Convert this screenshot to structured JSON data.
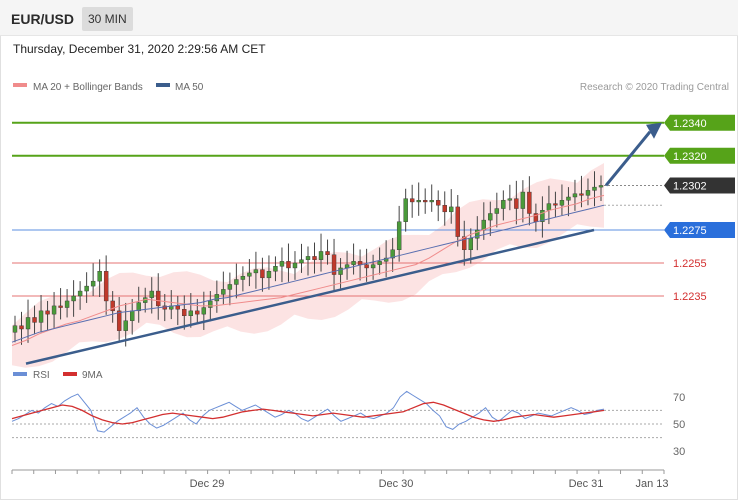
{
  "header": {
    "symbol": "EUR/USD",
    "timeframe": "30 MIN",
    "timestamp": "Thursday, December 31, 2020 2:29:56 AM CET"
  },
  "legend": {
    "ma20": "MA 20 + Bollinger Bands",
    "ma50": "MA 50",
    "credit": "Research © 2020 Trading Central",
    "ma20_color": "#f08c8c",
    "ma50_color": "#3b5d8c"
  },
  "rsi_legend": {
    "rsi": "RSI",
    "ma9": "9MA",
    "rsi_color": "#6b8fd6",
    "ma9_color": "#d32f2f"
  },
  "chart_data": [
    {
      "type": "candlestick",
      "x_ticks": [
        "Dec 29",
        "Dec 30",
        "Dec 31",
        "Jan 13"
      ],
      "ylim": [
        1.2195,
        1.2355
      ],
      "levels": [
        {
          "value": 1.234,
          "label": "1.2340",
          "kind": "resistance",
          "color": "#56a319"
        },
        {
          "value": 1.232,
          "label": "1.2320",
          "kind": "resistance",
          "color": "#56a319"
        },
        {
          "value": 1.2302,
          "label": "1.2302",
          "kind": "current",
          "color": "#333333"
        },
        {
          "value": 1.2275,
          "label": "1.2275",
          "kind": "pivot",
          "color": "#2a6fdb"
        },
        {
          "value": 1.2255,
          "label": "1.2255",
          "kind": "support",
          "color": "#d32f2f"
        },
        {
          "value": 1.2235,
          "label": "1.2235",
          "kind": "support",
          "color": "#d32f2f"
        }
      ],
      "trendline": {
        "from": 1.2194,
        "to": 1.2275
      },
      "target_arrow": {
        "from": 1.2302,
        "to": 1.234
      },
      "closes": [
        1.2217,
        1.2215,
        1.2222,
        1.2219,
        1.2226,
        1.2224,
        1.2229,
        1.2228,
        1.2232,
        1.2235,
        1.2238,
        1.2241,
        1.2244,
        1.225,
        1.2232,
        1.2226,
        1.2214,
        1.222,
        1.2226,
        1.2231,
        1.2234,
        1.2238,
        1.2229,
        1.2227,
        1.2229,
        1.2227,
        1.2223,
        1.2226,
        1.2224,
        1.2228,
        1.2232,
        1.2236,
        1.2239,
        1.2242,
        1.2245,
        1.2247,
        1.2249,
        1.2251,
        1.2246,
        1.225,
        1.2253,
        1.2256,
        1.2252,
        1.2255,
        1.2257,
        1.2259,
        1.2257,
        1.2262,
        1.226,
        1.2248,
        1.2252,
        1.2254,
        1.2256,
        1.2254,
        1.2252,
        1.2254,
        1.2256,
        1.2258,
        1.2263,
        1.228,
        1.2294,
        1.2292,
        1.2293,
        1.2292,
        1.2293,
        1.229,
        1.2286,
        1.2289,
        1.2271,
        1.2263,
        1.227,
        1.2275,
        1.2281,
        1.2285,
        1.2288,
        1.2293,
        1.2294,
        1.2288,
        1.2298,
        1.2285,
        1.228,
        1.2287,
        1.2291,
        1.229,
        1.2293,
        1.2295,
        1.2297,
        1.2296,
        1.2299,
        1.2301,
        1.2302
      ],
      "ma20": [
        1.2205,
        1.2208,
        1.2212,
        1.2215,
        1.2218,
        1.222,
        1.2223,
        1.2226,
        1.2229,
        1.2231,
        1.2233,
        1.2232,
        1.2231,
        1.223,
        1.2229,
        1.2229,
        1.223,
        1.2231,
        1.2232,
        1.2233,
        1.2234,
        1.2236,
        1.2238,
        1.224,
        1.2242,
        1.2244,
        1.2246,
        1.2248,
        1.225,
        1.2252,
        1.2254,
        1.2258,
        1.2263,
        1.2268,
        1.2272,
        1.2275,
        1.2278,
        1.228,
        1.2282,
        1.2284,
        1.2287,
        1.2289,
        1.2291,
        1.2294,
        1.2296
      ],
      "ma50": [
        1.2207,
        1.221,
        1.2213,
        1.2215,
        1.2217,
        1.2219,
        1.2221,
        1.2223,
        1.2225,
        1.2226,
        1.2227,
        1.2228,
        1.2229,
        1.223,
        1.2231,
        1.2233,
        1.2234,
        1.2236,
        1.2238,
        1.224,
        1.2242,
        1.2244,
        1.2246,
        1.2248,
        1.225,
        1.2252,
        1.2254,
        1.2256,
        1.2258,
        1.226,
        1.2262,
        1.2264,
        1.2266,
        1.2268,
        1.227,
        1.2272,
        1.2274,
        1.2276,
        1.2278,
        1.228,
        1.2282,
        1.2284,
        1.2286,
        1.2288,
        1.229
      ]
    },
    {
      "type": "line",
      "series": [
        {
          "name": "RSI",
          "values": [
            52,
            54,
            57,
            60,
            58,
            62,
            65,
            63,
            67,
            70,
            72,
            66,
            60,
            45,
            44,
            48,
            52,
            55,
            58,
            62,
            55,
            50,
            47,
            49,
            52,
            55,
            58,
            53,
            50,
            56,
            60,
            62,
            64,
            66,
            63,
            60,
            62,
            64,
            61,
            58,
            55,
            57,
            60,
            58,
            54,
            52,
            55,
            58,
            61,
            56,
            52,
            54,
            56,
            58,
            55,
            54,
            56,
            58,
            62,
            70,
            74,
            71,
            68,
            65,
            60,
            56,
            48,
            46,
            50,
            52,
            55,
            58,
            62,
            55,
            52,
            56,
            60,
            58,
            54,
            56,
            58,
            57,
            56,
            58,
            60,
            62,
            60,
            57,
            58,
            60,
            61
          ]
        },
        {
          "name": "9MA",
          "values": [
            54,
            56,
            58,
            60,
            62,
            64,
            63,
            60,
            56,
            53,
            51,
            50,
            51,
            53,
            55,
            57,
            58,
            57,
            56,
            55,
            54,
            55,
            57,
            59,
            60,
            61,
            60,
            59,
            58,
            57,
            56,
            57,
            58,
            57,
            56,
            55,
            56,
            57,
            58,
            59,
            62,
            65,
            66,
            64,
            61,
            58,
            55,
            53,
            52,
            53,
            55,
            56,
            57,
            56,
            55,
            56,
            57,
            58,
            59,
            60
          ]
        }
      ],
      "yticks": [
        "70",
        "50",
        "30"
      ],
      "ylim": [
        22,
        78
      ]
    }
  ]
}
